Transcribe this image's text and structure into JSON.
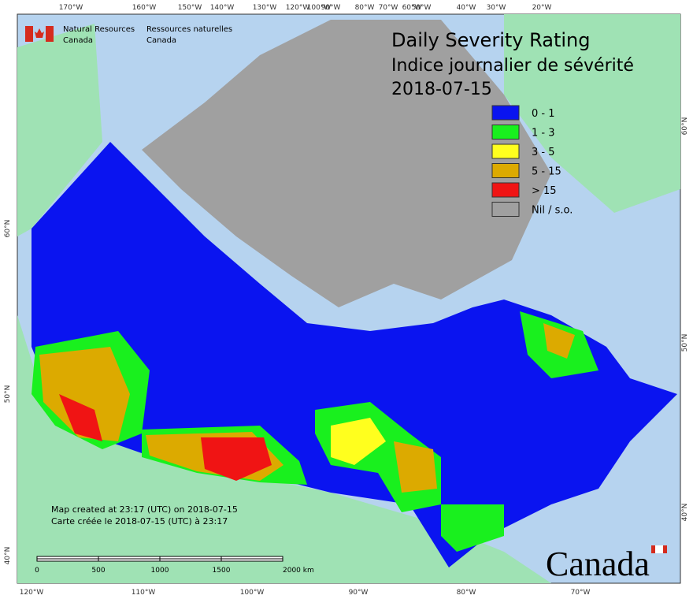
{
  "header": {
    "agency_en": "Natural Resources",
    "agency_en_2": "Canada",
    "agency_fr": "Ressources naturelles",
    "agency_fr_2": "Canada"
  },
  "title": {
    "line1": "Daily Severity Rating",
    "line2": "Indice journalier de sévérité",
    "date": "2018-07-15"
  },
  "legend": {
    "items": [
      {
        "label": "0 - 1",
        "color": "#0a14f0"
      },
      {
        "label": "1 - 3",
        "color": "#19f01e"
      },
      {
        "label": "3 - 5",
        "color": "#ffff1e"
      },
      {
        "label": "5 - 15",
        "color": "#dcaa00"
      },
      {
        "label": "> 15",
        "color": "#f01414"
      },
      {
        "label": "Nil / s.o.",
        "color": "#a0a0a0"
      }
    ]
  },
  "notes": {
    "created_en": "Map created at 23:17 (UTC) on 2018-07-15",
    "created_fr": "Carte créée le 2018-07-15 (UTC) à 23:17"
  },
  "scale": {
    "labels": [
      "0",
      "500",
      "1000",
      "1500",
      "2000 km"
    ]
  },
  "graticule": {
    "top": [
      "170°W",
      "160°W",
      "150°W",
      "140°W",
      "130°W",
      "120°W",
      "100°W",
      "90°W",
      "80°W",
      "70°W",
      "60°W",
      "50°W",
      "40°W",
      "30°W",
      "20°W"
    ],
    "bottom": [
      "120°W",
      "110°W",
      "100°W",
      "90°W",
      "80°W",
      "70°W"
    ],
    "left": [
      "60°N",
      "50°N",
      "40°N"
    ],
    "right": [
      "60°N",
      "50°N",
      "40°N"
    ]
  },
  "wordmark": "Canada"
}
